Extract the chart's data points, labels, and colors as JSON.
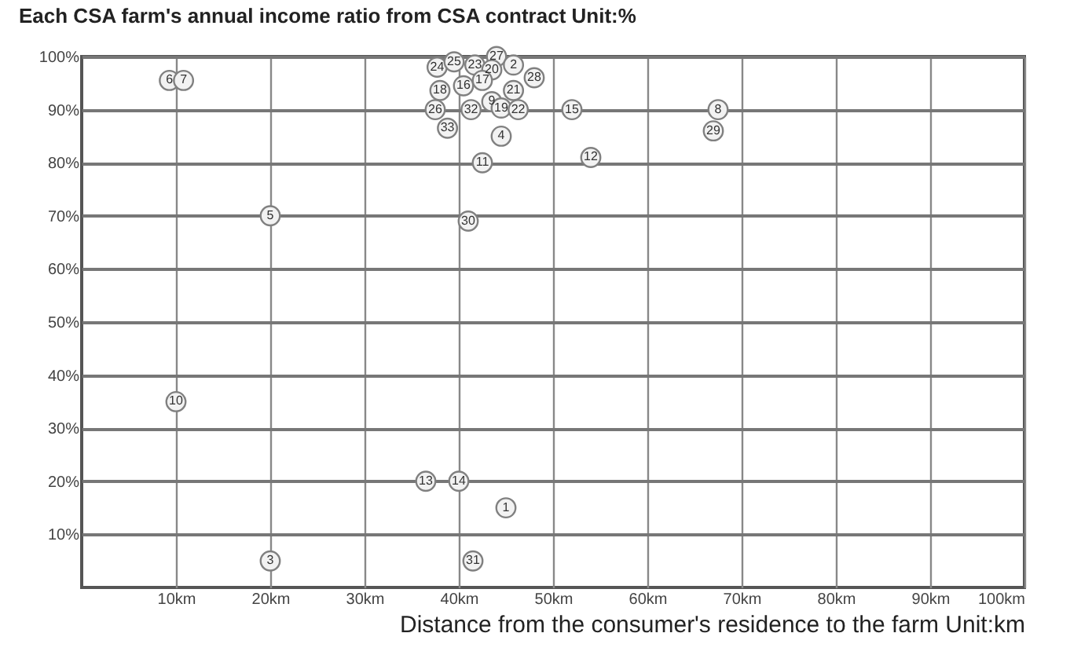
{
  "chart_data": {
    "type": "scatter",
    "title": "Each CSA farm's annual income ratio from CSA contract  Unit:%",
    "xlabel": "Distance from the consumer's residence to the farm  Unit:km",
    "xlim": [
      0,
      100
    ],
    "ylim": [
      0,
      100
    ],
    "xticks": [
      {
        "value": 10,
        "label": "10km"
      },
      {
        "value": 20,
        "label": "20km"
      },
      {
        "value": 30,
        "label": "30km"
      },
      {
        "value": 40,
        "label": "40km"
      },
      {
        "value": 50,
        "label": "50km"
      },
      {
        "value": 60,
        "label": "60km"
      },
      {
        "value": 70,
        "label": "70km"
      },
      {
        "value": 80,
        "label": "80km"
      },
      {
        "value": 90,
        "label": "90km"
      },
      {
        "value": 100,
        "label": "100km"
      }
    ],
    "yticks": [
      {
        "value": 10,
        "label": "10%"
      },
      {
        "value": 20,
        "label": "20%"
      },
      {
        "value": 30,
        "label": "30%"
      },
      {
        "value": 40,
        "label": "40%"
      },
      {
        "value": 50,
        "label": "50%"
      },
      {
        "value": 60,
        "label": "60%"
      },
      {
        "value": 70,
        "label": "70%"
      },
      {
        "value": 80,
        "label": "80%"
      },
      {
        "value": 90,
        "label": "90%"
      },
      {
        "value": 100,
        "label": "100%"
      }
    ],
    "grid": true,
    "marker": "circle",
    "series": [
      {
        "color": "#808080",
        "x": [
          9.3,
          10.8,
          20,
          10,
          20,
          36.5,
          40,
          45,
          41.5,
          41,
          42.5,
          54,
          44.5,
          52,
          67.5,
          67,
          44,
          37.7,
          39.5,
          41.7,
          43.5,
          45.8,
          48,
          38,
          40.5,
          42.5,
          45.8,
          37.5,
          41.3,
          43.5,
          44.5,
          46.3,
          38.8
        ],
        "values": [
          95.5,
          95.5,
          70,
          35,
          5,
          20,
          20,
          15,
          5,
          69,
          80,
          81,
          85,
          90,
          90,
          86,
          100,
          98,
          99,
          98.4,
          97.5,
          98.4,
          96,
          93.6,
          94.5,
          95.5,
          93.6,
          90,
          90,
          91.5,
          90.3,
          90,
          86.5
        ]
      }
    ],
    "annotations": [
      {
        "text": "6",
        "x": 9.3,
        "y": 95.5
      },
      {
        "text": "7",
        "x": 10.8,
        "y": 95.5
      },
      {
        "text": "5",
        "x": 20,
        "y": 70
      },
      {
        "text": "10",
        "x": 10,
        "y": 35
      },
      {
        "text": "3",
        "x": 20,
        "y": 5
      },
      {
        "text": "13",
        "x": 36.5,
        "y": 20
      },
      {
        "text": "14",
        "x": 40,
        "y": 20
      },
      {
        "text": "1",
        "x": 45,
        "y": 15
      },
      {
        "text": "31",
        "x": 41.5,
        "y": 5
      },
      {
        "text": "30",
        "x": 41,
        "y": 69
      },
      {
        "text": "11",
        "x": 42.5,
        "y": 80
      },
      {
        "text": "12",
        "x": 54,
        "y": 81
      },
      {
        "text": "4",
        "x": 44.5,
        "y": 85
      },
      {
        "text": "15",
        "x": 52,
        "y": 90
      },
      {
        "text": "8",
        "x": 67.5,
        "y": 90
      },
      {
        "text": "29",
        "x": 67,
        "y": 86
      },
      {
        "text": "27",
        "x": 44,
        "y": 100
      },
      {
        "text": "24",
        "x": 37.7,
        "y": 98
      },
      {
        "text": "25",
        "x": 39.5,
        "y": 99
      },
      {
        "text": "23",
        "x": 41.7,
        "y": 98.4
      },
      {
        "text": "20",
        "x": 43.5,
        "y": 97.5
      },
      {
        "text": "2",
        "x": 45.8,
        "y": 98.4
      },
      {
        "text": "28",
        "x": 48,
        "y": 96
      },
      {
        "text": "18",
        "x": 38,
        "y": 93.6
      },
      {
        "text": "16",
        "x": 40.5,
        "y": 94.5
      },
      {
        "text": "17",
        "x": 42.5,
        "y": 95.5
      },
      {
        "text": "21",
        "x": 45.8,
        "y": 93.6
      },
      {
        "text": "26",
        "x": 37.5,
        "y": 90
      },
      {
        "text": "32",
        "x": 41.3,
        "y": 90
      },
      {
        "text": "9",
        "x": 43.5,
        "y": 91.5
      },
      {
        "text": "19",
        "x": 44.5,
        "y": 90.3
      },
      {
        "text": "22",
        "x": 46.3,
        "y": 90
      },
      {
        "text": "33",
        "x": 38.8,
        "y": 86.5
      }
    ]
  }
}
